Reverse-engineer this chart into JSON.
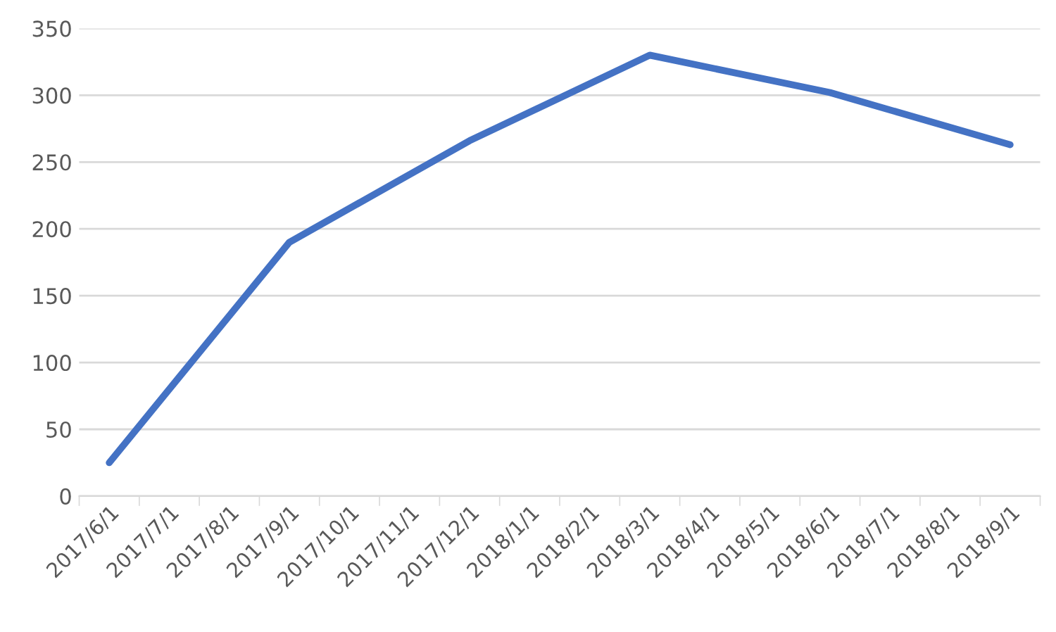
{
  "chart_data": {
    "type": "line",
    "categories": [
      "2017/6/1",
      "2017/7/1",
      "2017/8/1",
      "2017/9/1",
      "2017/10/1",
      "2017/11/1",
      "2017/12/1",
      "2018/1/1",
      "2018/2/1",
      "2018/3/1",
      "2018/4/1",
      "2018/5/1",
      "2018/6/1",
      "2018/7/1",
      "2018/8/1",
      "2018/9/1"
    ],
    "series": [
      {
        "color": "#4472c4",
        "x": [
          "2017/6/1",
          "2017/9/1",
          "2017/12/1",
          "2018/3/1",
          "2018/6/1",
          "2018/9/1"
        ],
        "values": [
          25,
          190,
          266,
          330,
          302,
          263
        ]
      }
    ],
    "ylim": [
      0,
      350
    ],
    "yticks": [
      0,
      50,
      100,
      150,
      200,
      250,
      300,
      350
    ],
    "grid": "y",
    "legend": false,
    "marker": "none",
    "line_style": "solid"
  }
}
